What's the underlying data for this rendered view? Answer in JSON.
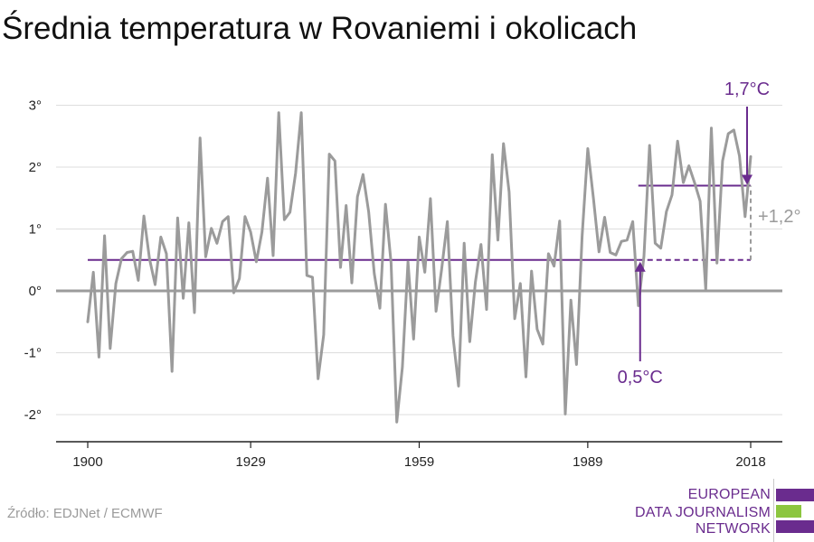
{
  "title": "Średnia temperatura w Rovaniemi i okolicach",
  "source": "Źródło: EDJNet / ECMWF",
  "logo": {
    "lines": [
      "EUROPEAN",
      "DATA JOURNALISM",
      "NETWORK"
    ],
    "colors": [
      "#6a2c8e",
      "#8cc63f",
      "#6a2c8e"
    ]
  },
  "colors": {
    "series": "#9b9b9b",
    "accent": "#6a2c8e",
    "zero_line": "#9b9b9b",
    "grid": "#dddddd",
    "axis": "#222222",
    "diff_label": "#9b9b9b"
  },
  "chart_data": {
    "type": "line",
    "title": "Średnia temperatura w Rovaniemi i okolicach",
    "xlabel": "",
    "ylabel": "",
    "xlim": [
      1900,
      2018
    ],
    "ylim": [
      -2.4,
      3.3
    ],
    "grid": true,
    "xticks": [
      1900,
      1929,
      1959,
      1989,
      2018
    ],
    "xtick_labels": [
      "1900",
      "1929",
      "1959",
      "1989",
      "2018"
    ],
    "yticks": [
      -2,
      -1,
      0,
      1,
      2,
      3
    ],
    "ytick_labels": [
      "-2°",
      "-1°",
      "0°",
      "1°",
      "2°",
      "3°"
    ],
    "series": [
      {
        "x": [
          1900,
          1901,
          1902,
          1903,
          1904,
          1905,
          1906,
          1907,
          1908,
          1909,
          1910,
          1911,
          1912,
          1913,
          1914,
          1915,
          1916,
          1917,
          1918,
          1919,
          1920,
          1921,
          1922,
          1923,
          1924,
          1925,
          1926,
          1927,
          1928,
          1929,
          1930,
          1931,
          1932,
          1933,
          1934,
          1935,
          1936,
          1937,
          1938,
          1939,
          1940,
          1941,
          1942,
          1943,
          1944,
          1945,
          1946,
          1947,
          1948,
          1949,
          1950,
          1951,
          1952,
          1953,
          1954,
          1955,
          1956,
          1957,
          1958,
          1959,
          1960,
          1961,
          1962,
          1963,
          1964,
          1965,
          1966,
          1967,
          1968,
          1969,
          1970,
          1971,
          1972,
          1973,
          1974,
          1975,
          1976,
          1977,
          1978,
          1979,
          1980,
          1981,
          1982,
          1983,
          1984,
          1985,
          1986,
          1987,
          1988,
          1989,
          1990,
          1991,
          1992,
          1993,
          1994,
          1995,
          1996,
          1997,
          1998,
          1999,
          2000,
          2001,
          2002,
          2003,
          2004,
          2005,
          2006,
          2007,
          2008,
          2009,
          2010,
          2011,
          2012,
          2013,
          2014,
          2015,
          2016,
          2017,
          2018
        ],
        "values": [
          -0.5,
          0.3,
          -1.07,
          0.89,
          -0.93,
          0.12,
          0.52,
          0.62,
          0.64,
          0.17,
          1.21,
          0.52,
          0.1,
          0.87,
          0.6,
          -1.3,
          1.18,
          -0.12,
          1.1,
          -0.35,
          2.47,
          0.55,
          1.01,
          0.77,
          1.12,
          1.2,
          -0.03,
          0.2,
          1.2,
          0.95,
          0.47,
          0.95,
          1.82,
          0.57,
          2.88,
          1.15,
          1.27,
          1.9,
          2.88,
          0.25,
          0.22,
          -1.42,
          -0.71,
          2.21,
          2.1,
          0.38,
          1.38,
          0.13,
          1.52,
          1.88,
          1.28,
          0.28,
          -0.28,
          1.4,
          0.45,
          -2.12,
          -1.23,
          0.47,
          -0.78,
          0.87,
          0.3,
          1.49,
          -0.33,
          0.35,
          1.12,
          -0.73,
          -1.54,
          0.77,
          -0.82,
          0.14,
          0.75,
          -0.3,
          2.2,
          0.82,
          2.38,
          1.6,
          -0.45,
          0.12,
          -1.39,
          0.32,
          -0.62,
          -0.86,
          0.6,
          0.4,
          1.13,
          -1.99,
          -0.15,
          -1.19,
          0.88,
          2.3,
          1.5,
          0.63,
          1.19,
          0.62,
          0.58,
          0.8,
          0.82,
          1.12,
          -0.24,
          0.56,
          2.35,
          0.77,
          0.69,
          1.28,
          1.55,
          2.42,
          1.75,
          2.02,
          1.75,
          1.45,
          0.02,
          2.63,
          0.45,
          2.1,
          2.54,
          2.6,
          2.18,
          1.2,
          2.17
        ]
      }
    ],
    "reference_lines": [
      {
        "from": 1900,
        "to": 2018,
        "value": 0.5
      },
      {
        "from": 1998,
        "to": 2018,
        "value": 1.7
      }
    ],
    "annotations": [
      {
        "text": "1,7°C",
        "x": 2018,
        "y": 1.7
      },
      {
        "text": "0,5°C",
        "x": 1998,
        "y": 0.5
      },
      {
        "text": "+1,2°",
        "x": 2018,
        "y": 1.2
      }
    ]
  }
}
